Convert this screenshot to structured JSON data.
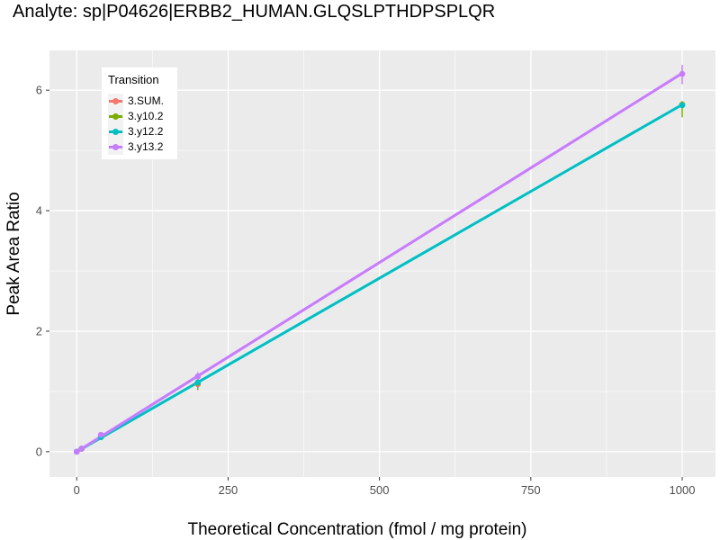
{
  "chart_data": {
    "type": "line",
    "title": "Analyte: sp|P04626|ERBB2_HUMAN.GLQSLPTHDPSPLQR",
    "xlabel": "Theoretical Concentration (fmol / mg protein)",
    "ylabel": "Peak Area Ratio",
    "xlim": [
      -45,
      1055
    ],
    "ylim": [
      -0.42,
      6.66
    ],
    "x_ticks": [
      0,
      250,
      500,
      750,
      1000
    ],
    "x_tick_labels": [
      "0",
      "250",
      "500",
      "750",
      "1000"
    ],
    "y_ticks": [
      0,
      2,
      4,
      6
    ],
    "y_tick_labels": [
      "0",
      "2",
      "4",
      "6"
    ],
    "grid": true,
    "legend": {
      "title": "Transition",
      "position": "top-left"
    },
    "series": [
      {
        "name": "3.SUM.",
        "color": "#F8766D",
        "points": [
          {
            "x": 0,
            "y": 0.0
          },
          {
            "x": 8,
            "y": 0.05
          },
          {
            "x": 40,
            "y": 0.27
          },
          {
            "x": 200,
            "y": 1.12
          },
          {
            "x": 1000,
            "y": 5.76
          }
        ]
      },
      {
        "name": "3.y10.2",
        "color": "#7CAE00",
        "points": [
          {
            "x": 0,
            "y": 0.0
          },
          {
            "x": 8,
            "y": 0.05
          },
          {
            "x": 40,
            "y": 0.25
          },
          {
            "x": 200,
            "y": 1.14
          },
          {
            "x": 1000,
            "y": 5.76
          }
        ]
      },
      {
        "name": "3.y12.2",
        "color": "#00BFC4",
        "points": [
          {
            "x": 0,
            "y": 0.0
          },
          {
            "x": 8,
            "y": 0.05
          },
          {
            "x": 40,
            "y": 0.24
          },
          {
            "x": 200,
            "y": 1.15
          },
          {
            "x": 1000,
            "y": 5.75
          }
        ]
      },
      {
        "name": "3.y13.2",
        "color": "#C77CFF",
        "points": [
          {
            "x": 0,
            "y": 0.0
          },
          {
            "x": 8,
            "y": 0.05
          },
          {
            "x": 40,
            "y": 0.28
          },
          {
            "x": 200,
            "y": 1.25
          },
          {
            "x": 1000,
            "y": 6.27
          }
        ]
      }
    ],
    "fit_lines": [
      {
        "series": "3.y12.2",
        "color": "#00BFC4",
        "from": [
          0,
          0.0
        ],
        "to": [
          1000,
          5.76
        ]
      },
      {
        "series": "3.y13.2",
        "color": "#C77CFF",
        "from": [
          0,
          0.0
        ],
        "to": [
          1000,
          6.28
        ]
      }
    ],
    "error_bars": [
      {
        "series": "3.y10.2",
        "color": "#7CAE00",
        "x": 200,
        "y_low": 1.02,
        "y_high": 1.18
      },
      {
        "series": "3.y10.2",
        "color": "#7CAE00",
        "x": 1000,
        "y_low": 5.55,
        "y_high": 5.82
      },
      {
        "series": "3.y12.2",
        "color": "#00BFC4",
        "x": 200,
        "y_low": 1.05,
        "y_high": 1.22
      },
      {
        "series": "3.y13.2",
        "color": "#C77CFF",
        "x": 200,
        "y_low": 1.18,
        "y_high": 1.32
      },
      {
        "series": "3.y13.2",
        "color": "#C77CFF",
        "x": 1000,
        "y_low": 6.1,
        "y_high": 6.42
      }
    ]
  },
  "colors": {
    "panel_background": "#EBEBEB",
    "grid_major": "#FFFFFF",
    "axis_text": "#4D4D4D"
  }
}
